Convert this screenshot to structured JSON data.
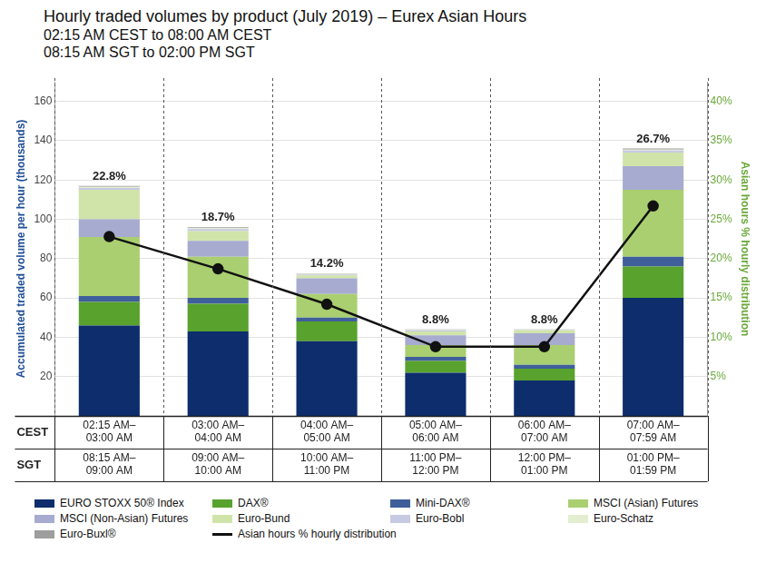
{
  "chart_data": {
    "type": "bar",
    "stacked": true,
    "title": "Hourly traded volumes by product (July 2019) – Eurex Asian Hours",
    "subtitle": [
      "02:15 AM CEST to 08:00 AM CEST",
      "08:15 AM SGT to 02:00 PM SGT"
    ],
    "y_label": "Accumulated traded volume per hour (thousands)",
    "y2_label": "Asian hours % hourly distribution",
    "x_row_labels": [
      "CEST",
      "SGT"
    ],
    "categories": [
      "02:15 AM–03:00 AM",
      "03:00 AM–04:00 AM",
      "04:00 AM–05:00 AM",
      "05:00 AM–06:00 AM",
      "06:00 AM–07:00 AM",
      "07:00 AM–07:59 AM"
    ],
    "categories_sgt": [
      "08:15 AM–09:00 AM",
      "09:00 AM–10:00 AM",
      "10:00 AM–11:00 PM",
      "11:00 PM–12:00 PM",
      "12:00 PM–01:00 PM",
      "01:00 PM–01:59 PM"
    ],
    "series": [
      {
        "name": "EURO STOXX 50® Index",
        "color": "#0d2d6c",
        "values": [
          46,
          43,
          38,
          22,
          18,
          60
        ]
      },
      {
        "name": "DAX®",
        "color": "#58a22d",
        "values": [
          12,
          14,
          10,
          6,
          6,
          16
        ]
      },
      {
        "name": "Mini-DAX®",
        "color": "#3f5f9b",
        "values": [
          3,
          3,
          2,
          2,
          2,
          5
        ]
      },
      {
        "name": "MSCI (Asian) Futures",
        "color": "#a9cf70",
        "values": [
          30,
          21,
          12,
          6,
          10,
          34
        ]
      },
      {
        "name": "MSCI (Non-Asian) Futures",
        "color": "#a7abd0",
        "values": [
          9,
          8,
          8,
          5,
          6,
          12
        ]
      },
      {
        "name": "Euro-Bund",
        "color": "#d0e4aa",
        "values": [
          15,
          5,
          1.5,
          2,
          1.5,
          7
        ]
      },
      {
        "name": "Euro-Bobl",
        "color": "#c8cae4",
        "values": [
          1,
          1,
          0.5,
          0.5,
          0.3,
          1
        ]
      },
      {
        "name": "Euro-Schatz",
        "color": "#e3eed0",
        "values": [
          0.5,
          0.5,
          0.3,
          0.3,
          0.2,
          0.5
        ]
      },
      {
        "name": "Euro-Buxl®",
        "color": "#9e9e9e",
        "values": [
          0.5,
          0.5,
          0.2,
          0.2,
          0.1,
          0.5
        ]
      },
      {
        "name": "Asian hours % hourly distribution",
        "type": "line",
        "axis": "y2",
        "color": "#111111",
        "marker": "circle",
        "line_style": "solid",
        "data_labels": true,
        "values": [
          22.8,
          18.7,
          14.2,
          8.8,
          8.8,
          26.7
        ],
        "value_labels": [
          "22.8%",
          "18.7%",
          "14.2%",
          "8.8%",
          "8.8%",
          "26.7%"
        ]
      }
    ],
    "ylim": [
      0,
      170
    ],
    "yticks": [
      20,
      40,
      60,
      80,
      100,
      120,
      140,
      160
    ],
    "y2lim": [
      0,
      42.5
    ],
    "y2ticks": [
      {
        "value": 5,
        "label": "5%"
      },
      {
        "value": 10,
        "label": "10%"
      },
      {
        "value": 15,
        "label": "15%"
      },
      {
        "value": 20,
        "label": "20%"
      },
      {
        "value": 25,
        "label": "25%"
      },
      {
        "value": 30,
        "label": "30%"
      },
      {
        "value": 35,
        "label": "35%"
      },
      {
        "value": 40,
        "label": "40%"
      }
    ],
    "grid": true,
    "legend": "bottom"
  }
}
